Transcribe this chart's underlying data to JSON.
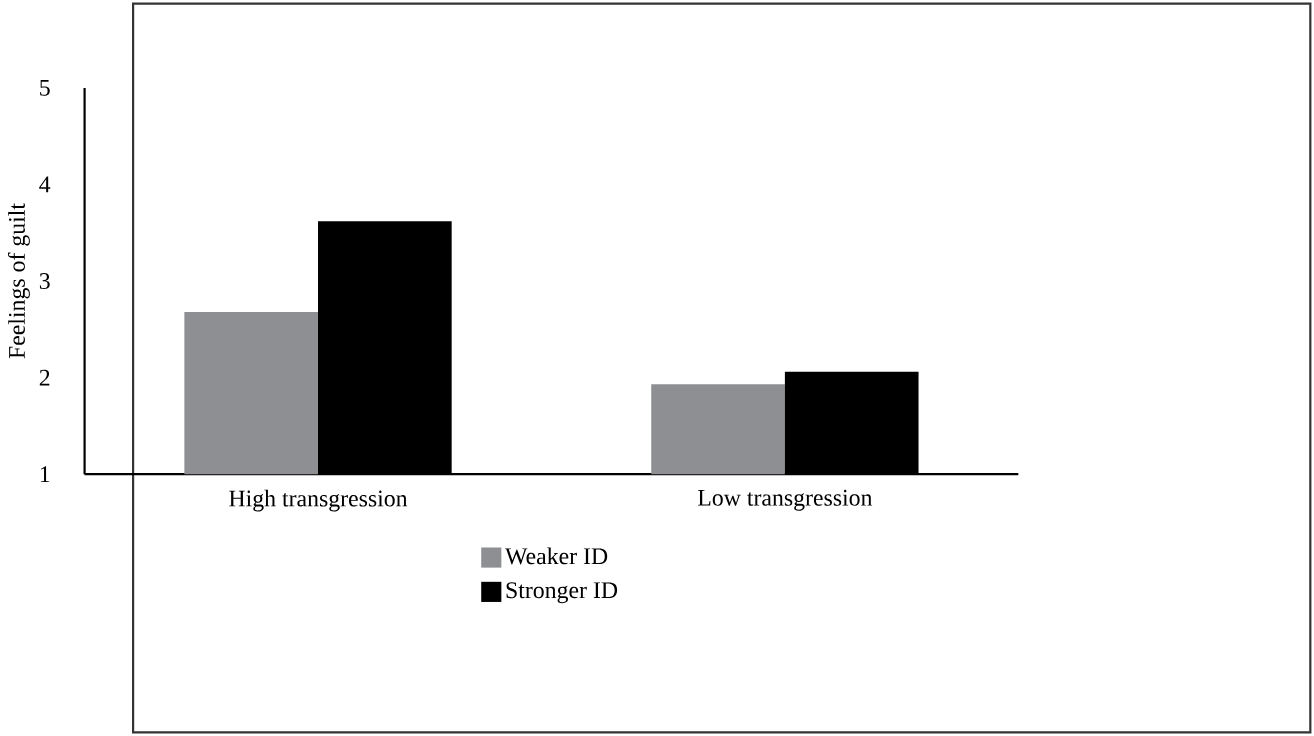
{
  "chart_data": {
    "type": "bar",
    "ylabel": "Feelings of guilt",
    "categories": [
      "High transgression",
      "Low transgression"
    ],
    "series": [
      {
        "name": "Weaker ID",
        "color": "#8e8f92",
        "values": [
          2.68,
          1.93
        ]
      },
      {
        "name": "Stronger ID",
        "color": "#000000",
        "values": [
          3.62,
          2.06
        ]
      }
    ],
    "ylim": [
      1,
      5
    ],
    "yticks": [
      1,
      2,
      3,
      4,
      5
    ],
    "grid": false,
    "legend": "bottom"
  }
}
